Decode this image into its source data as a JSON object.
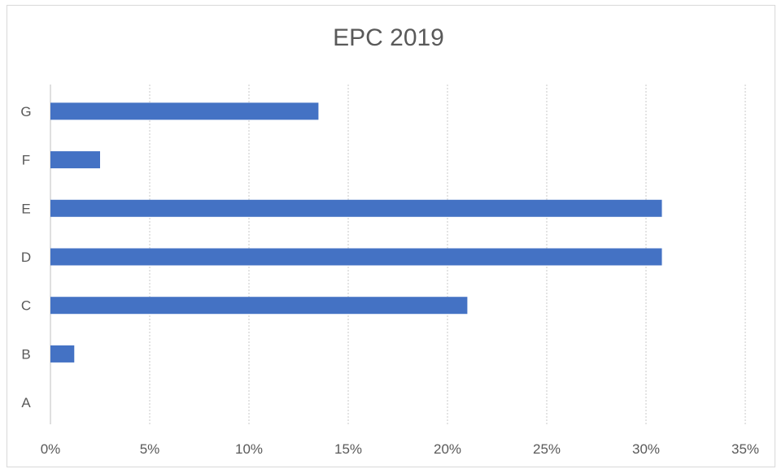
{
  "chart_data": {
    "type": "bar",
    "orientation": "horizontal",
    "title": "EPC 2019",
    "categories": [
      "A",
      "B",
      "C",
      "D",
      "E",
      "F",
      "G"
    ],
    "values": [
      0,
      1.2,
      21.0,
      30.8,
      30.8,
      2.5,
      13.5
    ],
    "x_ticks": [
      "0%",
      "5%",
      "10%",
      "15%",
      "20%",
      "25%",
      "30%",
      "35%"
    ],
    "xlim": [
      0,
      35
    ],
    "x_unit": "%",
    "grid": "vertical dashed",
    "legend": "none",
    "bar_color": "#4472c4"
  }
}
